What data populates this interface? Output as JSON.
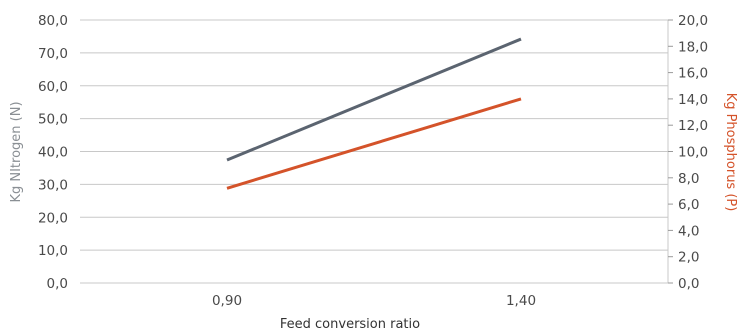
{
  "chart_data": {
    "type": "line",
    "xlabel": "Feed conversion ratio",
    "ylabel_left": "Kg NItrogen (N)",
    "ylabel_right": "Kg Phosphorus (P)",
    "categories": [
      "0,90",
      "1,40"
    ],
    "ylim_left": [
      0,
      80
    ],
    "ylim_right": [
      0,
      20
    ],
    "yticks_left": [
      "0,0",
      "10,0",
      "20,0",
      "30,0",
      "40,0",
      "50,0",
      "60,0",
      "70,0",
      "80,0"
    ],
    "yticks_right": [
      "0,0",
      "2,0",
      "4,0",
      "6,0",
      "8,0",
      "10,0",
      "12,0",
      "14,0",
      "16,0",
      "18,0",
      "20,0"
    ],
    "grid": true,
    "series": [
      {
        "name": "Kg NItrogen (N)",
        "axis": "left",
        "color": "#5b6470",
        "values": [
          37.4,
          74.2
        ]
      },
      {
        "name": "Kg Phosphorus (P)",
        "axis": "right",
        "color": "#d4532a",
        "values": [
          7.2,
          14.0
        ]
      }
    ],
    "colors": {
      "grid": "#c8c8c8",
      "left_title": "#8a8f94",
      "right_title": "#d4532a",
      "ticks": "#4a4a4a"
    }
  }
}
